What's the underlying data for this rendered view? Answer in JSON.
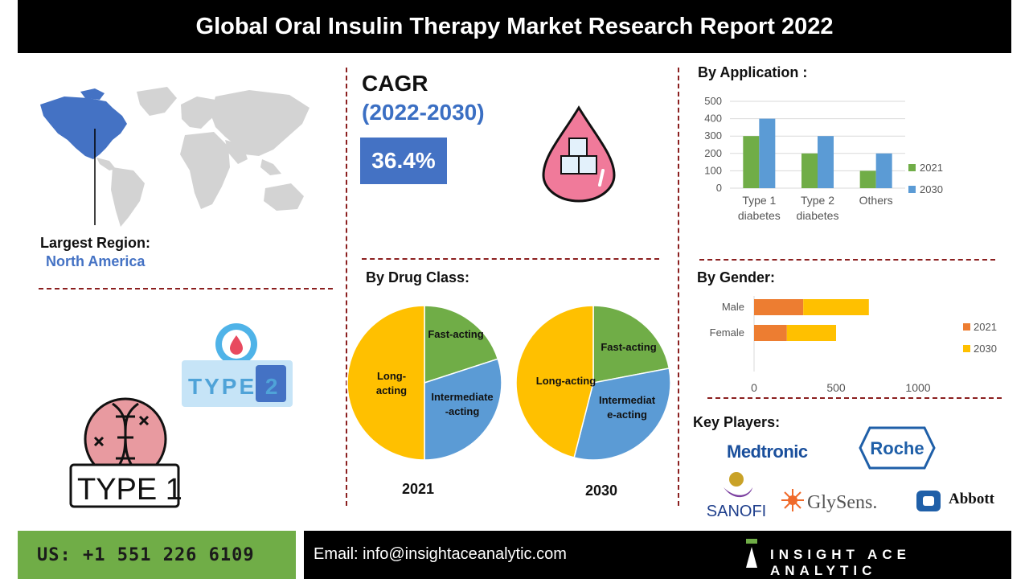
{
  "header": {
    "title": "Global Oral Insulin Therapy Market Research Report 2022"
  },
  "region": {
    "label": "Largest Region:",
    "value": "North America"
  },
  "cagr": {
    "title": "CAGR",
    "years": "(2022-2030)",
    "value": "36.4%"
  },
  "icons": {
    "type2": "TYPE 2",
    "type1": "TYPE 1"
  },
  "colors": {
    "green": "#70ad47",
    "blue": "#5b9bd5",
    "orange": "#ed7d31",
    "yellow": "#ffc000",
    "header": "#000000",
    "dash": "#8b1f1f",
    "accent": "#4472c4"
  },
  "sections": {
    "application": "By Application :",
    "drug_class": "By Drug Class:",
    "gender": "By Gender:",
    "key_players": "Key Players:"
  },
  "key_players": [
    "Medtronic",
    "Roche",
    "SANOFI",
    "GlySens.",
    "Abbott"
  ],
  "footer": {
    "phone": "US: +1 551 226 6109",
    "email": "Email: info@insightaceanalytic.com",
    "brand": "INSIGHT ACE ANALYTIC"
  },
  "chart_data": [
    {
      "type": "bar",
      "title": "By Application :",
      "categories": [
        "Type 1 diabetes",
        "Type 2 diabetes",
        "Others"
      ],
      "category_lines": [
        [
          "Type 1",
          "diabetes"
        ],
        [
          "Type 2",
          "diabetes"
        ],
        [
          "Others"
        ]
      ],
      "series": [
        {
          "name": "2021",
          "values": [
            300,
            200,
            100
          ],
          "color": "#70ad47"
        },
        {
          "name": "2030",
          "values": [
            400,
            300,
            200
          ],
          "color": "#5b9bd5"
        }
      ],
      "ylim": [
        0,
        500
      ],
      "yticks": [
        0,
        100,
        200,
        300,
        400,
        500
      ],
      "grid": true,
      "legend": "right"
    },
    {
      "type": "bar",
      "orientation": "horizontal",
      "stacked": true,
      "title": "By Gender:",
      "categories": [
        "Male",
        "Female"
      ],
      "series": [
        {
          "name": "2021",
          "values": [
            300,
            200
          ],
          "color": "#ed7d31"
        },
        {
          "name": "2030",
          "values": [
            400,
            300
          ],
          "color": "#ffc000"
        }
      ],
      "xlim": [
        0,
        1000
      ],
      "xticks": [
        0,
        500,
        1000
      ],
      "legend": "right"
    },
    {
      "type": "pie",
      "title": "2021",
      "labels": [
        "Fast-acting",
        "Intermediate-acting",
        "Long-acting"
      ],
      "label_lines": [
        [
          "Fast-acting"
        ],
        [
          "Intermediate",
          "-acting"
        ],
        [
          "Long-",
          "acting"
        ]
      ],
      "values": [
        20,
        30,
        50
      ],
      "colors": [
        "#70ad47",
        "#5b9bd5",
        "#ffc000"
      ]
    },
    {
      "type": "pie",
      "title": "2030",
      "labels": [
        "Fast-acting",
        "Intermediate-acting",
        "Long-acting"
      ],
      "label_lines": [
        [
          "Fast-acting"
        ],
        [
          "Intermediat",
          "e-acting"
        ],
        [
          "Long-acting"
        ]
      ],
      "values": [
        22,
        32,
        46
      ],
      "colors": [
        "#70ad47",
        "#5b9bd5",
        "#ffc000"
      ]
    }
  ]
}
